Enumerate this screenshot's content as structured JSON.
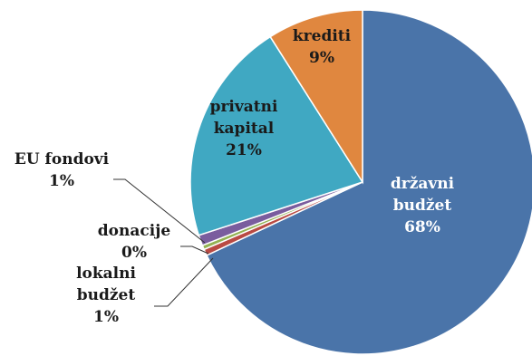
{
  "chart_data": {
    "type": "pie",
    "slices": [
      {
        "label": "državni budžet",
        "value": 68,
        "value_text": "68%",
        "color": "#4a74a9",
        "text_color": "#ffffff",
        "line1": "državni",
        "line2": "budžet"
      },
      {
        "label": "lokalni budžet",
        "value": 0.6,
        "value_text": "1%",
        "color": "#b94a43",
        "text_color": "#1a1a1a",
        "line1": "lokalni",
        "line2": "budžet"
      },
      {
        "label": "donacije",
        "value": 0.4,
        "value_text": "0%",
        "color": "#93b253",
        "text_color": "#1a1a1a",
        "line1": "donacije",
        "line2": ""
      },
      {
        "label": "EU fondovi",
        "value": 1.0,
        "value_text": "1%",
        "color": "#7a5d9e",
        "text_color": "#1a1a1a",
        "line1": "EU fondovi",
        "line2": ""
      },
      {
        "label": "privatni kapital",
        "value": 21,
        "value_text": "21%",
        "color": "#40a8c2",
        "text_color": "#1a1a1a",
        "line1": "privatni",
        "line2": "kapital"
      },
      {
        "label": "krediti",
        "value": 9,
        "value_text": "9%",
        "color": "#e0873f",
        "text_color": "#1a1a1a",
        "line1": "krediti",
        "line2": ""
      }
    ],
    "start_angle_deg": 0,
    "direction": "clockwise"
  }
}
